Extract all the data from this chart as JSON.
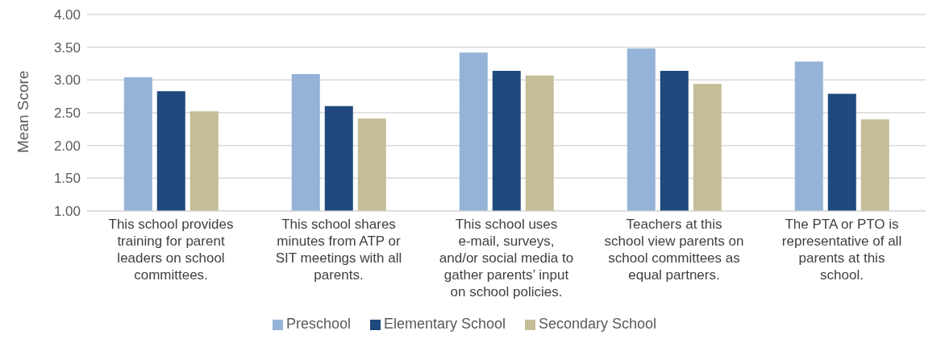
{
  "chart_data": {
    "type": "bar",
    "ylabel": "Mean Score",
    "categories": [
      "This school provides training for parent leaders on school committees.",
      "This school shares minutes from ATP or SIT meetings with all parents.",
      "This school uses e-mail, surveys, and/or social media to gather parents’ input on school policies.",
      "Teachers at this school view parents on school committees as equal partners.",
      "The PTA or PTO is representative of all parents at this school."
    ],
    "series": [
      {
        "name": "Preschool",
        "color": "#95b3d7",
        "values": [
          3.04,
          3.09,
          3.42,
          3.48,
          3.28
        ]
      },
      {
        "name": "Elementary School",
        "color": "#1f497d",
        "values": [
          2.83,
          2.6,
          3.14,
          3.14,
          2.79
        ]
      },
      {
        "name": "Secondary School",
        "color": "#c4bd97",
        "values": [
          2.52,
          2.41,
          3.07,
          2.94,
          2.4
        ]
      }
    ],
    "ylim": [
      1,
      4
    ],
    "yticks": [
      {
        "value": 1,
        "label": "1.00"
      },
      {
        "value": 1.5,
        "label": "1.50"
      },
      {
        "value": 2,
        "label": "2.00"
      },
      {
        "value": 2.5,
        "label": "2.50"
      },
      {
        "value": 3,
        "label": "3.00"
      },
      {
        "value": 3.5,
        "label": "3.50"
      },
      {
        "value": 4,
        "label": "4.00"
      }
    ],
    "grid": "y",
    "legend": "bottom"
  }
}
